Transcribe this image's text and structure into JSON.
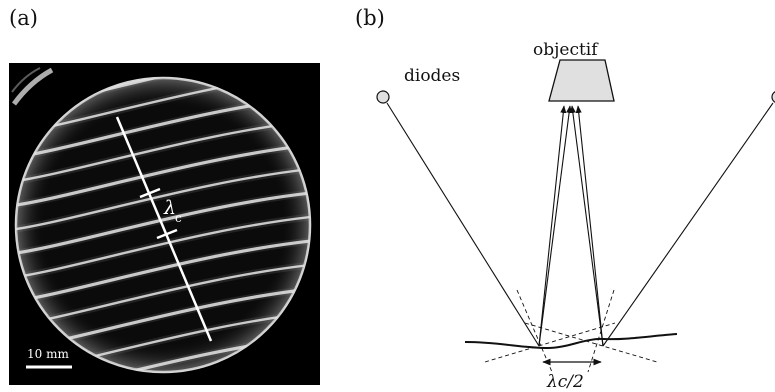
{
  "panel_a": {
    "label": "(a)",
    "wavelength_symbol": "λ",
    "wavelength_subscript": "c",
    "scale_bar_text": "10 mm"
  },
  "panel_b": {
    "label": "(b)",
    "objective_label": "objectif",
    "diodes_label": "diodes",
    "half_wavelength_label": "λc/2"
  },
  "colors": {
    "photo_background": "#000000",
    "fringe": "#e6e6e6",
    "objective_fill": "#e0e0e0",
    "line": "#111111"
  }
}
